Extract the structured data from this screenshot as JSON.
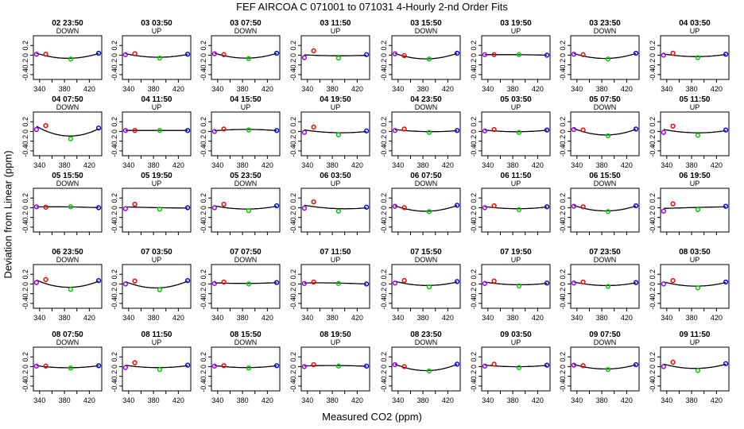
{
  "chart_data": {
    "type": "scatter",
    "title": "FEF   AIRCOA C   071001 to 071031   4-Hourly 2-nd Order Fits",
    "xlabel": "Measured CO2 (ppm)",
    "ylabel": "Deviation from Linear (ppm)",
    "xlim": [
      330,
      440
    ],
    "ylim": [
      -0.5,
      0.4
    ],
    "x_ticks": [
      "340",
      "380",
      "420"
    ],
    "x_ticks_minor": [
      "360",
      "400"
    ],
    "y_ticks": [
      "0.2",
      "0",
      "-0.2",
      "-0.4"
    ],
    "standards_x": [
      335,
      350,
      390,
      435
    ],
    "point_colors": [
      "#9a00ff",
      "#ff0000",
      "#00cc00",
      "#0000ff"
    ],
    "panels": [
      {
        "label": "02 23:50",
        "dir": "DOWN",
        "values": [
          0.02,
          0.02,
          -0.08,
          0.04
        ]
      },
      {
        "label": "03 03:50",
        "dir": "UP",
        "values": [
          0.01,
          0.03,
          -0.06,
          0.02
        ]
      },
      {
        "label": "03 07:50",
        "dir": "DOWN",
        "values": [
          0.03,
          0.01,
          -0.07,
          0.04
        ]
      },
      {
        "label": "03 11:50",
        "dir": "UP",
        "values": [
          -0.05,
          0.09,
          -0.06,
          0.01
        ]
      },
      {
        "label": "03 15:50",
        "dir": "DOWN",
        "values": [
          0.03,
          -0.01,
          -0.08,
          0.04
        ]
      },
      {
        "label": "03 19:50",
        "dir": "UP",
        "values": [
          0.01,
          0.01,
          0.01,
          0.0
        ]
      },
      {
        "label": "03 23:50",
        "dir": "DOWN",
        "values": [
          0.02,
          0.01,
          -0.08,
          0.04
        ]
      },
      {
        "label": "04 03:50",
        "dir": "UP",
        "values": [
          0.0,
          0.04,
          -0.05,
          0.02
        ]
      },
      {
        "label": "04 07:50",
        "dir": "DOWN",
        "values": [
          0.04,
          0.12,
          -0.15,
          0.07
        ]
      },
      {
        "label": "04 11:50",
        "dir": "UP",
        "values": [
          0.02,
          0.02,
          0.02,
          0.02
        ]
      },
      {
        "label": "04 15:50",
        "dir": "UP",
        "values": [
          0.0,
          0.05,
          0.03,
          0.02
        ]
      },
      {
        "label": "04 19:50",
        "dir": "UP",
        "values": [
          -0.02,
          0.09,
          -0.07,
          0.01
        ]
      },
      {
        "label": "04 23:50",
        "dir": "DOWN",
        "values": [
          0.02,
          0.05,
          -0.02,
          0.02
        ]
      },
      {
        "label": "05 03:50",
        "dir": "UP",
        "values": [
          0.01,
          0.04,
          -0.02,
          0.03
        ]
      },
      {
        "label": "05 07:50",
        "dir": "DOWN",
        "values": [
          0.04,
          0.03,
          -0.09,
          0.05
        ]
      },
      {
        "label": "05 11:50",
        "dir": "UP",
        "values": [
          -0.02,
          0.11,
          -0.08,
          0.03
        ]
      },
      {
        "label": "05 15:50",
        "dir": "DOWN",
        "values": [
          0.02,
          0.01,
          0.02,
          0.0
        ]
      },
      {
        "label": "05 19:50",
        "dir": "UP",
        "values": [
          -0.02,
          0.07,
          -0.03,
          0.0
        ]
      },
      {
        "label": "05 23:50",
        "dir": "DOWN",
        "values": [
          0.0,
          0.07,
          -0.06,
          0.04
        ]
      },
      {
        "label": "06 03:50",
        "dir": "UP",
        "values": [
          -0.01,
          0.12,
          -0.07,
          0.01
        ]
      },
      {
        "label": "06 07:50",
        "dir": "DOWN",
        "values": [
          0.03,
          0.0,
          -0.08,
          0.05
        ]
      },
      {
        "label": "06 11:50",
        "dir": "UP",
        "values": [
          0.0,
          0.04,
          -0.04,
          0.02
        ]
      },
      {
        "label": "06 15:50",
        "dir": "DOWN",
        "values": [
          0.03,
          0.02,
          -0.08,
          0.04
        ]
      },
      {
        "label": "06 19:50",
        "dir": "UP",
        "values": [
          -0.07,
          0.08,
          -0.04,
          0.03
        ]
      },
      {
        "label": "06 23:50",
        "dir": "DOWN",
        "values": [
          0.03,
          0.09,
          -0.11,
          0.07
        ]
      },
      {
        "label": "07 03:50",
        "dir": "UP",
        "values": [
          0.0,
          0.06,
          -0.12,
          0.07
        ]
      },
      {
        "label": "07 07:50",
        "dir": "DOWN",
        "values": [
          0.01,
          0.04,
          0.0,
          0.03
        ]
      },
      {
        "label": "07 11:50",
        "dir": "UP",
        "values": [
          0.01,
          0.04,
          0.01,
          0.0
        ]
      },
      {
        "label": "07 15:50",
        "dir": "DOWN",
        "values": [
          0.02,
          0.07,
          -0.06,
          0.05
        ]
      },
      {
        "label": "07 19:50",
        "dir": "UP",
        "values": [
          0.01,
          0.06,
          -0.04,
          0.02
        ]
      },
      {
        "label": "07 23:50",
        "dir": "DOWN",
        "values": [
          0.02,
          0.04,
          -0.05,
          0.03
        ]
      },
      {
        "label": "08 03:50",
        "dir": "UP",
        "values": [
          0.0,
          0.07,
          -0.08,
          0.04
        ]
      },
      {
        "label": "08 07:50",
        "dir": "DOWN",
        "values": [
          0.01,
          0.01,
          -0.03,
          0.02
        ]
      },
      {
        "label": "08 11:50",
        "dir": "UP",
        "values": [
          -0.02,
          0.08,
          -0.06,
          0.03
        ]
      },
      {
        "label": "08 15:50",
        "dir": "DOWN",
        "values": [
          0.01,
          0.02,
          -0.03,
          0.02
        ]
      },
      {
        "label": "08 19:50",
        "dir": "UP",
        "values": [
          0.0,
          0.04,
          0.01,
          0.01
        ]
      },
      {
        "label": "08 23:50",
        "dir": "DOWN",
        "values": [
          0.04,
          0.0,
          -0.09,
          0.05
        ]
      },
      {
        "label": "09 03:50",
        "dir": "UP",
        "values": [
          0.01,
          0.05,
          -0.02,
          0.03
        ]
      },
      {
        "label": "09 07:50",
        "dir": "DOWN",
        "values": [
          0.03,
          0.02,
          -0.06,
          0.04
        ]
      },
      {
        "label": "09 11:50",
        "dir": "UP",
        "values": [
          0.0,
          0.09,
          -0.08,
          0.06
        ]
      }
    ]
  }
}
